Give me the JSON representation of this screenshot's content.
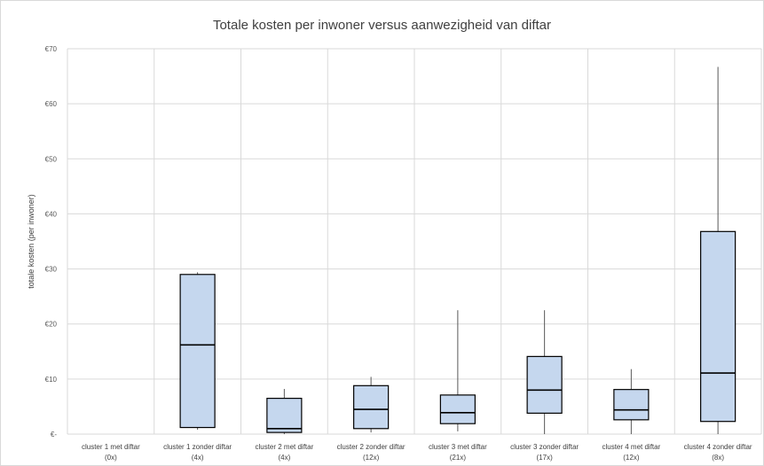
{
  "chart_data": {
    "type": "boxplot",
    "title": "Totale kosten per inwoner versus aanwezigheid van diftar",
    "ylabel": "totale kosten (per inwoner)",
    "xlabel": "",
    "ylim": [
      0,
      70
    ],
    "yticks": [
      {
        "value": 0,
        "label": "€-"
      },
      {
        "value": 10,
        "label": "€10"
      },
      {
        "value": 20,
        "label": "€20"
      },
      {
        "value": 30,
        "label": "€30"
      },
      {
        "value": 40,
        "label": "€40"
      },
      {
        "value": 50,
        "label": "€50"
      },
      {
        "value": 60,
        "label": "€60"
      },
      {
        "value": 70,
        "label": "€70"
      }
    ],
    "grid": true,
    "box_color": "#c5d7ee",
    "categories": [
      {
        "line1": "cluster 1 met diftar",
        "line2": "(0x)",
        "box": null
      },
      {
        "line1": "cluster 1 zonder diftar",
        "line2": "(4x)",
        "box": {
          "min": 0.8,
          "q1": 1.2,
          "median": 16.2,
          "q3": 29.0,
          "max": 29.4
        }
      },
      {
        "line1": "cluster 2 met diftar",
        "line2": "(4x)",
        "box": {
          "min": 0.0,
          "q1": 0.3,
          "median": 1.0,
          "q3": 6.5,
          "max": 8.2
        }
      },
      {
        "line1": "cluster 2 zonder diftar",
        "line2": "(12x)",
        "box": {
          "min": 0.3,
          "q1": 1.0,
          "median": 4.5,
          "q3": 8.8,
          "max": 10.4
        }
      },
      {
        "line1": "cluster 3 met diftar",
        "line2": "(21x)",
        "box": {
          "min": 0.5,
          "q1": 1.9,
          "median": 3.9,
          "q3": 7.1,
          "max": 22.5
        }
      },
      {
        "line1": "cluster 3 zonder diftar",
        "line2": "(17x)",
        "box": {
          "min": 0.0,
          "q1": 3.8,
          "median": 8.0,
          "q3": 14.1,
          "max": 22.5
        }
      },
      {
        "line1": "cluster 4 met diftar",
        "line2": "(12x)",
        "box": {
          "min": 0.0,
          "q1": 2.6,
          "median": 4.4,
          "q3": 8.1,
          "max": 11.8
        }
      },
      {
        "line1": "cluster 4 zonder diftar",
        "line2": "(8x)",
        "box": {
          "min": 0.0,
          "q1": 2.3,
          "median": 11.1,
          "q3": 36.8,
          "max": 66.7
        }
      }
    ]
  }
}
